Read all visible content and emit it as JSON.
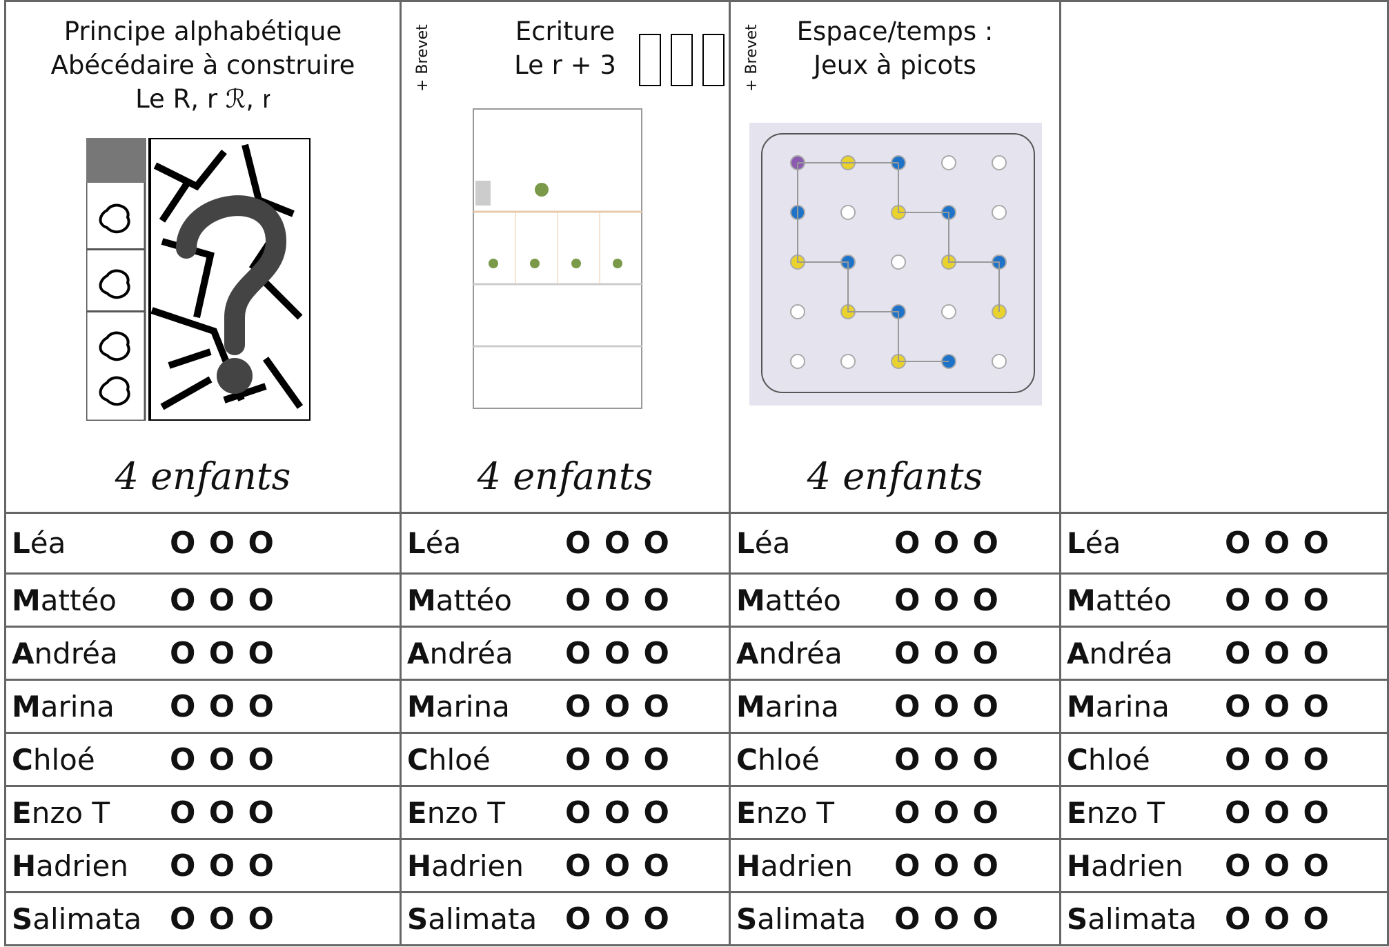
{
  "columns": [
    {
      "header": [
        "Principe alphabétique",
        "Abécédaire à  construire",
        "Le R, r ℛ, ꭇ"
      ],
      "footer": "4 enfants",
      "rows": [
        [
          "Léa",
          "O O O"
        ],
        [
          "Mattéo",
          "O O O"
        ],
        [
          "Andréa",
          "O O O"
        ],
        [
          "Marina",
          "O O O"
        ],
        [
          "Chloé",
          "O O O"
        ],
        [
          "Enzo T",
          "O O O"
        ],
        [
          "Hadrien",
          "O O O"
        ],
        [
          "Salimata",
          "O O O"
        ]
      ]
    },
    {
      "side": "+ Brevet",
      "header": [
        "Ecriture",
        "Le r + 3"
      ],
      "footer": "4 enfants",
      "rows": [
        [
          "Léa",
          "O O O"
        ],
        [
          "Mattéo",
          "O O O"
        ],
        [
          "Andréa",
          "O O O"
        ],
        [
          "Marina",
          "O O O"
        ],
        [
          "Chloé",
          "O O O"
        ],
        [
          "Enzo T",
          "O O O"
        ],
        [
          "Hadrien",
          "O O O"
        ],
        [
          "Salimata",
          "O O O"
        ]
      ]
    },
    {
      "side": "+ Brevet",
      "header": [
        "Espace/temps :",
        "Jeux à picots"
      ],
      "footer": "4 enfants",
      "rows": [
        [
          "Léa",
          "O O O"
        ],
        [
          "Mattéo",
          "O O O"
        ],
        [
          "Andréa",
          "O O O"
        ],
        [
          "Marina",
          "O O O"
        ],
        [
          "Chloé",
          "O O O"
        ],
        [
          "Enzo T",
          "O O O"
        ],
        [
          "Hadrien",
          "O O O"
        ],
        [
          "Salimata",
          "O O O"
        ]
      ]
    },
    {
      "rows": [
        [
          "Léa",
          "O O O"
        ],
        [
          "Mattéo",
          "O O O"
        ],
        [
          "Andréa",
          "O O O"
        ],
        [
          "Marina",
          "O O O"
        ],
        [
          "Chloé",
          "O O O"
        ],
        [
          "Enzo T",
          "O O O"
        ],
        [
          "Hadrien",
          "O O O"
        ],
        [
          "Salimata",
          "O O O"
        ]
      ]
    }
  ]
}
